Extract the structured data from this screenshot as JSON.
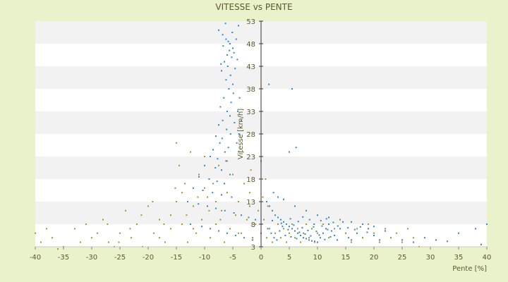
{
  "chart_data": {
    "type": "scatter",
    "title": "VITESSE vs PENTE",
    "xlabel": "Pente [%]",
    "ylabel": "Vitesse [km/h]",
    "xlim": [
      -40,
      40
    ],
    "ylim": [
      3,
      53
    ],
    "x_ticks": [
      "-40",
      "-35",
      "-30",
      "-25",
      "-20",
      "-15",
      "-10",
      "-5",
      "0",
      "5",
      "10",
      "15",
      "20",
      "25",
      "30",
      "35",
      "40"
    ],
    "y_ticks": [
      "3",
      "8",
      "13",
      "18",
      "23",
      "28",
      "33",
      "38",
      "43",
      "48",
      "53"
    ],
    "grid": true,
    "legend": "none",
    "colors": {
      "series_blue": "#2e86d6",
      "series_olive": "#9a9a2a",
      "plot_band_light": "#ffffff",
      "plot_band_dark": "#f2f2f2",
      "background": "#eaf2cc",
      "axis": "#333333"
    },
    "series": [
      {
        "color": "#2e86d6",
        "points": [
          [
            -7.5,
            51
          ],
          [
            -6.8,
            50
          ],
          [
            -6.2,
            49
          ],
          [
            -5.8,
            48.5
          ],
          [
            -5.5,
            48
          ],
          [
            -5,
            47
          ],
          [
            -4.8,
            46
          ],
          [
            -6,
            45.5
          ],
          [
            -5.2,
            45
          ],
          [
            -6.5,
            44
          ],
          [
            -5.9,
            43
          ],
          [
            -4.6,
            42.5
          ],
          [
            -7,
            42
          ],
          [
            -5.4,
            41
          ],
          [
            -6.2,
            40
          ],
          [
            -5,
            39
          ],
          [
            -5.7,
            38
          ],
          [
            -4.9,
            37
          ],
          [
            -6.6,
            36
          ],
          [
            -5.3,
            35
          ],
          [
            -7.2,
            34
          ],
          [
            -6,
            33
          ],
          [
            -5.5,
            32
          ],
          [
            -6.8,
            31
          ],
          [
            -4.7,
            30.5
          ],
          [
            -7.5,
            30
          ],
          [
            -6.1,
            29
          ],
          [
            -5.4,
            28
          ],
          [
            -8,
            27.5
          ],
          [
            -6.9,
            27
          ],
          [
            -7.3,
            26
          ],
          [
            -5.8,
            25
          ],
          [
            -8.5,
            24.5
          ],
          [
            -6.4,
            24
          ],
          [
            -9,
            23
          ],
          [
            -7.7,
            22.5
          ],
          [
            -6.2,
            22
          ],
          [
            -10,
            21
          ],
          [
            -8.1,
            20.5
          ],
          [
            -7,
            20
          ],
          [
            -5.5,
            19
          ],
          [
            -11,
            18.5
          ],
          [
            -9.2,
            18
          ],
          [
            -7.8,
            17.5
          ],
          [
            -6.5,
            17
          ],
          [
            -12,
            16
          ],
          [
            -10.3,
            15.5
          ],
          [
            -8.6,
            15
          ],
          [
            -7,
            14.5
          ],
          [
            -5.2,
            14
          ],
          [
            -13,
            13
          ],
          [
            -11.1,
            12.5
          ],
          [
            -9.5,
            12
          ],
          [
            -8,
            11.5
          ],
          [
            -6.4,
            11
          ],
          [
            -4.8,
            10.5
          ],
          [
            -3.5,
            10
          ],
          [
            -2.2,
            9.5
          ],
          [
            -1,
            9
          ],
          [
            -12.5,
            8
          ],
          [
            -10.5,
            7.5
          ],
          [
            -9,
            7
          ],
          [
            -7.5,
            6.5
          ],
          [
            -6,
            6
          ],
          [
            -4.5,
            5.5
          ],
          [
            -3,
            5
          ],
          [
            -1.5,
            4.5
          ],
          [
            -4,
            52
          ],
          [
            -6.3,
            52.5
          ],
          [
            -5.1,
            50.5
          ],
          [
            -4.4,
            49
          ],
          [
            -6.7,
            47.5
          ],
          [
            -5.6,
            46.5
          ],
          [
            -4.2,
            44.5
          ],
          [
            -7.1,
            43.5
          ],
          [
            -3.8,
            36
          ],
          [
            -4.1,
            33
          ],
          [
            -3.5,
            31
          ],
          [
            -3.9,
            28
          ],
          [
            -4.3,
            26
          ],
          [
            1,
            13
          ],
          [
            1.5,
            12
          ],
          [
            2,
            11
          ],
          [
            2.5,
            10
          ],
          [
            3,
            9.5
          ],
          [
            3.5,
            9
          ],
          [
            4,
            8.5
          ],
          [
            4.5,
            8
          ],
          [
            5,
            7.5
          ],
          [
            5.5,
            7
          ],
          [
            6,
            6.5
          ],
          [
            6.5,
            6
          ],
          [
            7,
            5.5
          ],
          [
            7.5,
            5
          ],
          [
            8,
            4.8
          ],
          [
            8.5,
            4.5
          ],
          [
            9,
            4.3
          ],
          [
            9.5,
            4.2
          ],
          [
            10,
            4
          ],
          [
            10.5,
            5
          ],
          [
            11,
            6
          ],
          [
            11.5,
            7
          ],
          [
            12,
            8
          ],
          [
            12.5,
            6.5
          ],
          [
            13,
            5.5
          ],
          [
            13.5,
            4.5
          ],
          [
            14,
            7
          ],
          [
            14.5,
            8.5
          ],
          [
            15,
            6
          ],
          [
            15.5,
            5
          ],
          [
            16,
            4.5
          ],
          [
            17,
            6
          ],
          [
            18,
            5
          ],
          [
            19,
            7
          ],
          [
            20,
            5.5
          ],
          [
            21,
            4.5
          ],
          [
            22,
            6.5
          ],
          [
            23,
            5
          ],
          [
            25,
            4.5
          ],
          [
            27,
            4
          ],
          [
            29,
            5
          ],
          [
            31,
            4.5
          ],
          [
            33,
            4.2
          ],
          [
            35,
            6
          ],
          [
            38,
            7
          ],
          [
            39,
            3.5
          ],
          [
            40,
            8
          ],
          [
            1.2,
            7
          ],
          [
            1.8,
            6
          ],
          [
            2.3,
            5
          ],
          [
            2.8,
            4.5
          ],
          [
            3.3,
            6.5
          ],
          [
            3.8,
            7.5
          ],
          [
            4.3,
            5.5
          ],
          [
            4.8,
            6.8
          ],
          [
            5.3,
            5.2
          ],
          [
            5.8,
            7.8
          ],
          [
            6.3,
            4.8
          ],
          [
            6.8,
            6.2
          ],
          [
            7.3,
            7.2
          ],
          [
            7.8,
            5.8
          ],
          [
            8.3,
            6.6
          ],
          [
            8.8,
            5.4
          ],
          [
            9.3,
            7.4
          ],
          [
            9.8,
            6.4
          ],
          [
            10.3,
            5.6
          ],
          [
            10.8,
            7.6
          ],
          [
            11.3,
            4.6
          ],
          [
            11.8,
            6.8
          ],
          [
            12.3,
            5.2
          ],
          [
            1.4,
            39
          ],
          [
            5.5,
            38
          ],
          [
            6.2,
            25
          ],
          [
            5,
            24
          ],
          [
            3,
            14
          ],
          [
            4,
            13.5
          ],
          [
            2.2,
            15
          ],
          [
            6,
            12
          ],
          [
            8,
            11
          ],
          [
            10,
            10
          ],
          [
            12,
            9.5
          ],
          [
            14,
            9
          ],
          [
            16,
            8.5
          ],
          [
            18,
            8
          ],
          [
            20,
            7.5
          ],
          [
            2,
            8.8
          ],
          [
            3.6,
            8.2
          ],
          [
            5.2,
            9.2
          ],
          [
            6.6,
            8.6
          ],
          [
            7.4,
            9.6
          ],
          [
            8.6,
            9
          ],
          [
            9.4,
            8
          ],
          [
            10.6,
            8.8
          ],
          [
            11.6,
            9.2
          ],
          [
            12.8,
            8.4
          ],
          [
            13.6,
            7.6
          ],
          [
            15.4,
            7.2
          ],
          [
            16.6,
            6.8
          ],
          [
            17.6,
            7.4
          ],
          [
            18.8,
            6.2
          ]
        ]
      },
      {
        "color": "#9a9a2a",
        "points": [
          [
            -40,
            6
          ],
          [
            -39,
            4
          ],
          [
            -37,
            5
          ],
          [
            -35,
            3
          ],
          [
            -33,
            7
          ],
          [
            -31,
            8
          ],
          [
            -30,
            5
          ],
          [
            -28,
            9
          ],
          [
            -27,
            4
          ],
          [
            -25,
            6
          ],
          [
            -24,
            11
          ],
          [
            -23,
            5
          ],
          [
            -22,
            8
          ],
          [
            -21,
            3
          ],
          [
            -20,
            12
          ],
          [
            -19,
            6
          ],
          [
            -18,
            9
          ],
          [
            -17,
            4
          ],
          [
            -16,
            7
          ],
          [
            -15,
            26
          ],
          [
            -15,
            13
          ],
          [
            -14.5,
            21
          ],
          [
            -14,
            8
          ],
          [
            -13.5,
            17
          ],
          [
            -13,
            4
          ],
          [
            -12.5,
            24
          ],
          [
            -12,
            12
          ],
          [
            -11.5,
            6
          ],
          [
            -11,
            19
          ],
          [
            -10.5,
            9
          ],
          [
            -10,
            23
          ],
          [
            -9.5,
            14
          ],
          [
            -9,
            5
          ],
          [
            -8.5,
            17
          ],
          [
            -8,
            8
          ],
          [
            -7.5,
            21
          ],
          [
            -7,
            11
          ],
          [
            -6.5,
            4
          ],
          [
            -6,
            15
          ],
          [
            -5.5,
            7
          ],
          [
            -5,
            19
          ],
          [
            -4.5,
            10
          ],
          [
            -4,
            13
          ],
          [
            -3.5,
            6
          ],
          [
            -3,
            17
          ],
          [
            -2.5,
            9
          ],
          [
            -2,
            12
          ],
          [
            -1.5,
            5
          ],
          [
            -1,
            8
          ],
          [
            -0.5,
            11
          ],
          [
            0,
            6
          ],
          [
            0.5,
            9
          ],
          [
            1,
            5
          ],
          [
            1.5,
            7
          ],
          [
            2,
            4
          ],
          [
            2.5,
            6
          ],
          [
            3,
            8
          ],
          [
            3.5,
            5
          ],
          [
            4,
            7
          ],
          [
            4.5,
            4
          ],
          [
            5,
            6
          ],
          [
            5.5,
            8
          ],
          [
            6,
            5
          ],
          [
            6.5,
            7
          ],
          [
            7,
            4
          ],
          [
            7.5,
            6
          ],
          [
            8,
            8
          ],
          [
            8.5,
            5
          ],
          [
            9,
            7
          ],
          [
            9.5,
            4
          ],
          [
            10,
            6
          ],
          [
            11,
            8
          ],
          [
            12,
            5
          ],
          [
            13,
            7
          ],
          [
            14,
            9
          ],
          [
            15,
            6
          ],
          [
            16,
            4
          ],
          [
            17,
            7
          ],
          [
            18,
            5
          ],
          [
            19,
            8
          ],
          [
            20,
            6
          ],
          [
            21,
            4
          ],
          [
            22,
            7
          ],
          [
            23,
            5
          ],
          [
            24,
            6
          ],
          [
            25,
            4
          ],
          [
            26,
            7
          ],
          [
            27,
            5
          ],
          [
            28,
            3
          ],
          [
            -38,
            7
          ],
          [
            -36,
            2.5
          ],
          [
            -32,
            4
          ],
          [
            -29,
            6
          ],
          [
            -26,
            3
          ],
          [
            -18,
            5
          ],
          [
            -16,
            10
          ],
          [
            -14,
            15
          ],
          [
            -12,
            7
          ],
          [
            -10,
            16
          ],
          [
            -8,
            13
          ],
          [
            -6,
            22
          ],
          [
            -4,
            6
          ],
          [
            -2,
            15
          ],
          [
            0,
            22
          ],
          [
            0.3,
            14
          ],
          [
            0.8,
            18
          ],
          [
            1.2,
            12
          ],
          [
            -1.8,
            20
          ],
          [
            -3.2,
            24
          ],
          [
            -7.2,
            9
          ],
          [
            -9.2,
            11
          ],
          [
            -11.2,
            14
          ],
          [
            -13.2,
            10
          ],
          [
            -15.2,
            16
          ],
          [
            -17.2,
            8
          ],
          [
            -19.2,
            13
          ],
          [
            -21.2,
            10
          ],
          [
            -23.2,
            7
          ],
          [
            -25.2,
            4
          ],
          [
            -27.2,
            8
          ]
        ]
      }
    ]
  }
}
